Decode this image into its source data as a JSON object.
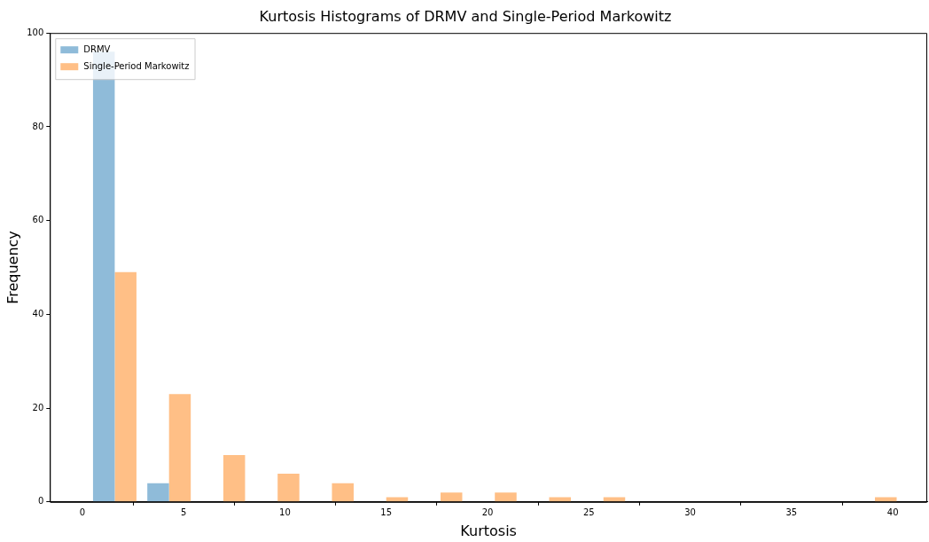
{
  "chart_data": {
    "type": "histogram",
    "title": "Kurtosis Histograms of DRMV and Single-Period Markowitz",
    "xlabel": "Kurtosis",
    "ylabel": "Frequency",
    "bins": [
      0.26,
      2.94,
      5.62,
      8.3,
      10.98,
      13.66,
      16.34,
      19.02,
      21.7,
      24.38,
      27.06,
      29.74,
      32.42,
      35.1,
      37.78,
      40.46
    ],
    "series": [
      {
        "name": "DRMV",
        "color": "#8fbbd9",
        "values": [
          96,
          4,
          0,
          0,
          0,
          0,
          0,
          0,
          0,
          0,
          0,
          0,
          0,
          0,
          0
        ]
      },
      {
        "name": "Single-Period Markowitz",
        "color": "#ffbf86",
        "values": [
          49,
          23,
          10,
          6,
          4,
          1,
          2,
          2,
          1,
          1,
          0,
          0,
          0,
          0,
          1
        ]
      }
    ],
    "xlim": [
      -1.6,
      41.7
    ],
    "xticks": [
      0,
      5,
      10,
      15,
      20,
      25,
      30,
      35,
      40
    ],
    "ylim": [
      0,
      100
    ],
    "yticks": [
      0,
      20,
      40,
      60,
      80,
      100
    ],
    "grid": false,
    "legend": "top left"
  }
}
